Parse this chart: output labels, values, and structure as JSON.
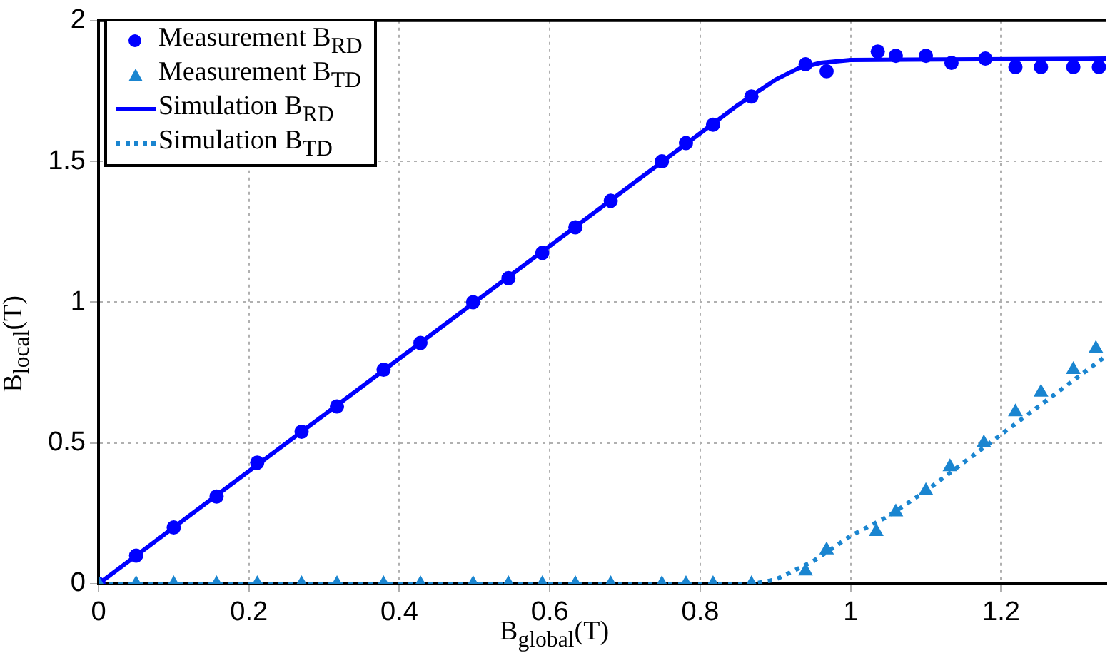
{
  "chart_data": {
    "type": "scatter",
    "xlabel": "B$_{global}$(T)",
    "ylabel": "B$_{local}$(T)",
    "xlim": [
      0,
      1.34
    ],
    "ylim": [
      0,
      2
    ],
    "xticks": [
      0,
      0.2,
      0.4,
      0.6,
      0.8,
      1,
      1.2
    ],
    "yticks": [
      0,
      0.5,
      1,
      1.5,
      2
    ],
    "grid": true,
    "legend": "top left",
    "series": [
      {
        "name": "Measurement B$_{RD}$",
        "type": "scatter",
        "marker": "circle",
        "color": "#0000ff",
        "x": [
          0,
          0.05,
          0.1,
          0.157,
          0.211,
          0.27,
          0.317,
          0.379,
          0.428,
          0.498,
          0.545,
          0.59,
          0.634,
          0.681,
          0.749,
          0.781,
          0.817,
          0.868,
          0.94,
          0.968,
          1.036,
          1.06,
          1.1,
          1.134,
          1.179,
          1.219,
          1.253,
          1.296,
          1.33
        ],
        "values": [
          0,
          0.1,
          0.2,
          0.31,
          0.43,
          0.54,
          0.63,
          0.76,
          0.855,
          1.0,
          1.085,
          1.175,
          1.266,
          1.36,
          1.5,
          1.565,
          1.63,
          1.73,
          1.845,
          1.82,
          1.89,
          1.875,
          1.875,
          1.85,
          1.865,
          1.835,
          1.835,
          1.835,
          1.835
        ]
      },
      {
        "name": "Measurement B$_{TD}$",
        "type": "scatter",
        "marker": "triangle",
        "color": "#1a85d0",
        "x": [
          0,
          0.05,
          0.1,
          0.157,
          0.211,
          0.27,
          0.317,
          0.379,
          0.428,
          0.498,
          0.545,
          0.59,
          0.634,
          0.681,
          0.749,
          0.781,
          0.817,
          0.868,
          0.94,
          0.968,
          1.034,
          1.06,
          1.1,
          1.132,
          1.177,
          1.219,
          1.253,
          1.296,
          1.326
        ],
        "values": [
          0,
          0,
          0,
          0,
          0,
          0,
          0,
          0,
          0,
          0,
          0,
          0,
          0,
          0,
          0,
          0,
          0,
          0,
          0.045,
          0.12,
          0.185,
          0.255,
          0.33,
          0.415,
          0.5,
          0.61,
          0.68,
          0.76,
          0.835
        ]
      },
      {
        "name": "Simulation B$_{RD}$",
        "type": "line",
        "marker": "none",
        "line_style": "solid",
        "color": "#0000ff",
        "x": [
          0,
          0.85,
          0.9,
          0.93,
          0.96,
          1.0,
          1.34
        ],
        "values": [
          0,
          1.7,
          1.79,
          1.83,
          1.85,
          1.86,
          1.865
        ]
      },
      {
        "name": "Simulation B$_{TD}$",
        "type": "line",
        "marker": "none",
        "line_style": "dotted",
        "color": "#1a85d0",
        "x": [
          0,
          0.87,
          0.9,
          0.95,
          1.0,
          1.05,
          1.1,
          1.2,
          1.34
        ],
        "values": [
          0,
          0,
          0.015,
          0.08,
          0.17,
          0.24,
          0.33,
          0.53,
          0.81
        ]
      }
    ]
  }
}
